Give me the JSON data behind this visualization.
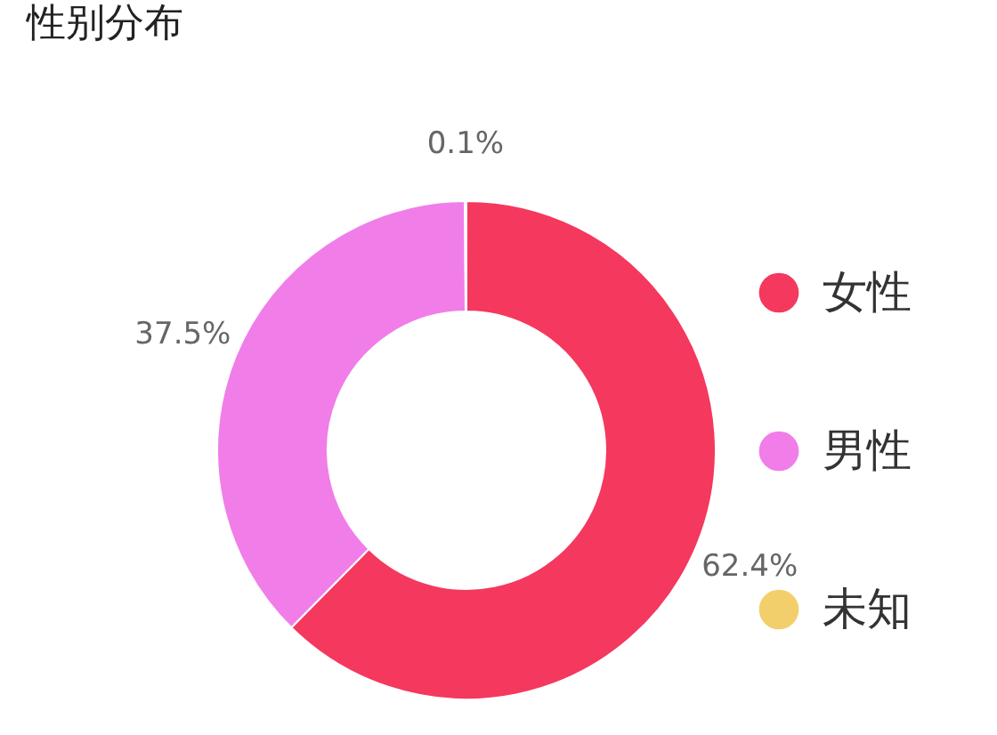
{
  "chart_data": {
    "type": "donut",
    "title": "性别分布",
    "categories": [
      "女性",
      "男性",
      "未知"
    ],
    "values": [
      62.4,
      37.5,
      0.1
    ],
    "value_labels": [
      "62.4%",
      "37.5%",
      "0.1%"
    ],
    "colors": [
      "#f5385e",
      "#f17de9",
      "#f3cf6b"
    ],
    "legend": "right"
  }
}
